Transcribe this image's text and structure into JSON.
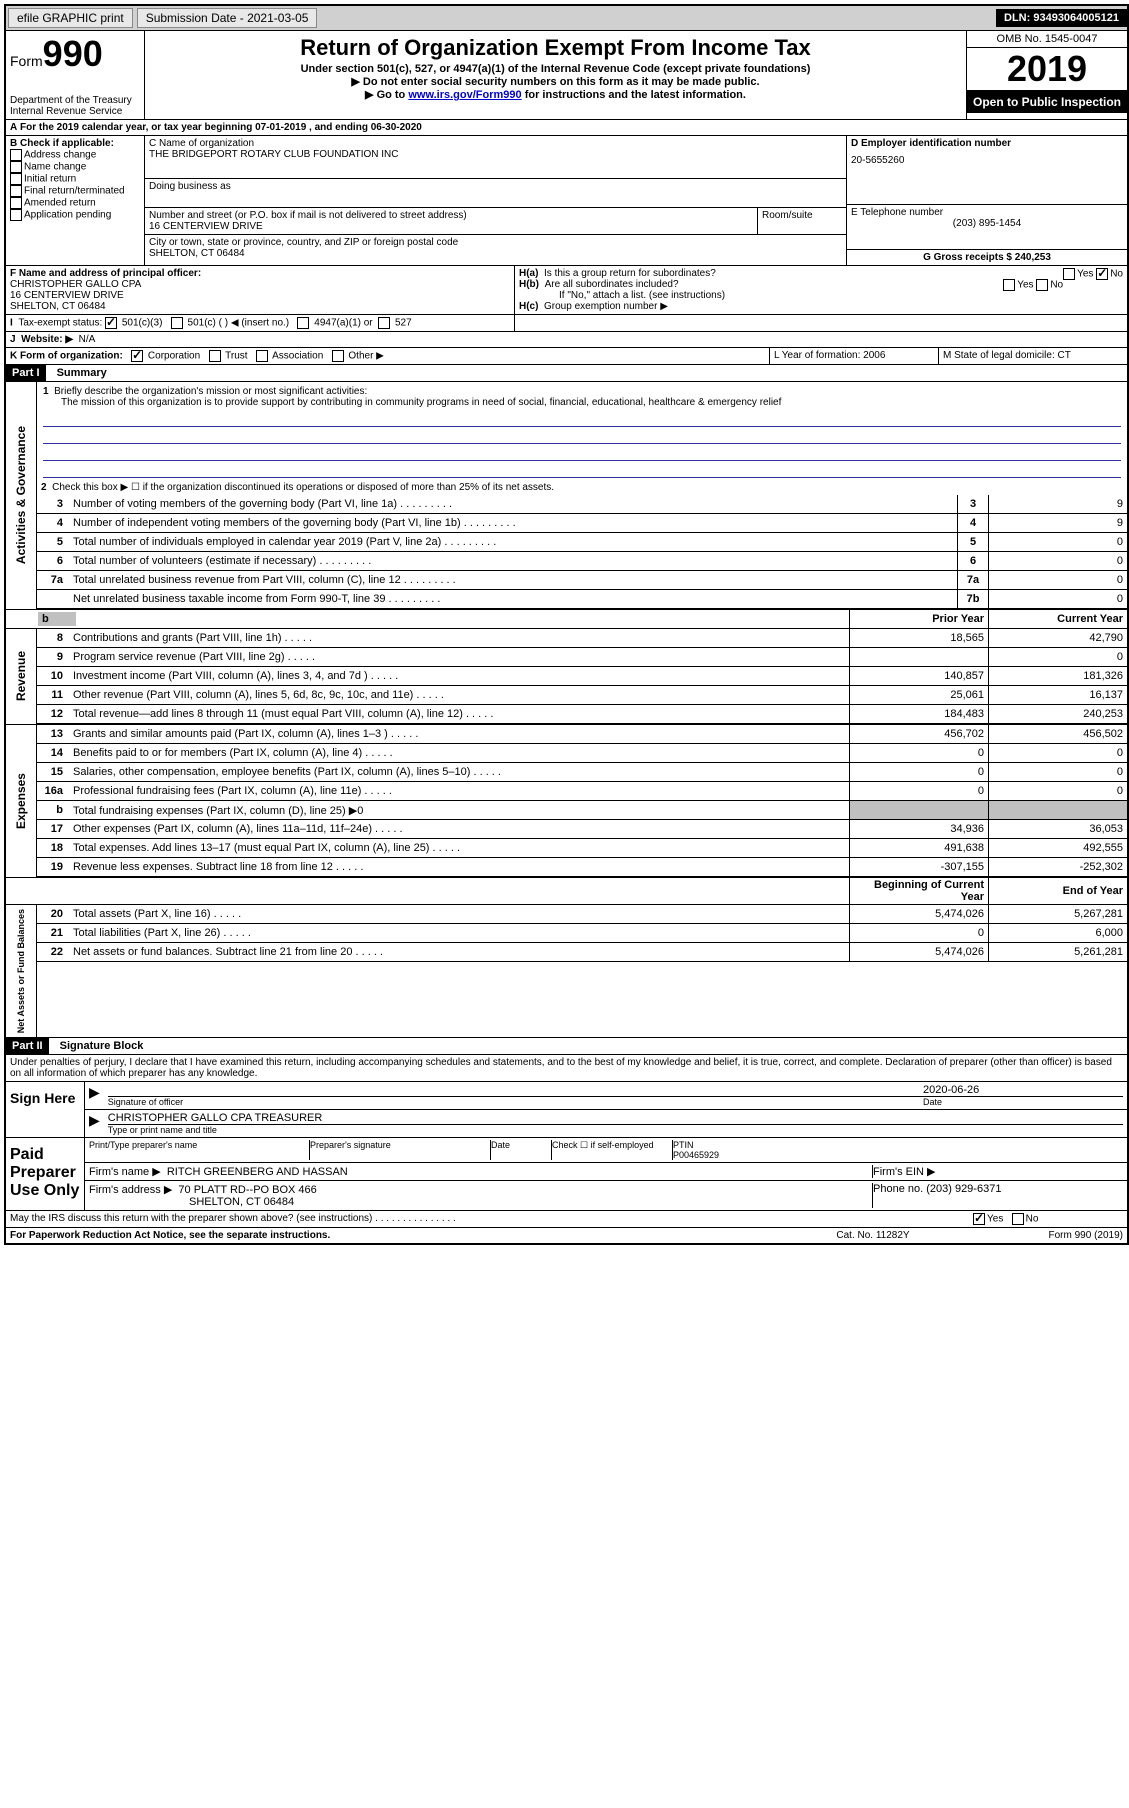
{
  "topbar": {
    "efile": "efile GRAPHIC print",
    "submission": "Submission Date - 2021-03-05",
    "dln": "DLN: 93493064005121"
  },
  "header": {
    "form_prefix": "Form",
    "form_num": "990",
    "dept": "Department of the Treasury\nInternal Revenue Service",
    "title": "Return of Organization Exempt From Income Tax",
    "sub1": "Under section 501(c), 527, or 4947(a)(1) of the Internal Revenue Code (except private foundations)",
    "sub2": "▶ Do not enter social security numbers on this form as it may be made public.",
    "sub3_a": "▶ Go to ",
    "sub3_link": "www.irs.gov/Form990",
    "sub3_b": " for instructions and the latest information.",
    "omb": "OMB No. 1545-0047",
    "year": "2019",
    "inspection": "Open to Public Inspection"
  },
  "a_line": "For the 2019 calendar year, or tax year beginning 07-01-2019    , and ending 06-30-2020",
  "b": {
    "title": "B Check if applicable:",
    "opts": [
      "Address change",
      "Name change",
      "Initial return",
      "Final return/terminated",
      "Amended return",
      "Application pending"
    ]
  },
  "c": {
    "label": "C Name of organization",
    "name": "THE BRIDGEPORT ROTARY CLUB FOUNDATION INC",
    "dba": "Doing business as",
    "addr_label": "Number and street (or P.O. box if mail is not delivered to street address)",
    "room": "Room/suite",
    "addr": "16 CENTERVIEW DRIVE",
    "city_label": "City or town, state or province, country, and ZIP or foreign postal code",
    "city": "SHELTON, CT  06484"
  },
  "d": {
    "label": "D Employer identification number",
    "ein": "20-5655260"
  },
  "e": {
    "label": "E Telephone number",
    "phone": "(203) 895-1454"
  },
  "g": {
    "label": "G Gross receipts $ 240,253"
  },
  "f": {
    "label": "F  Name and address of principal officer:",
    "name": "CHRISTOPHER GALLO CPA",
    "addr": "16 CENTERVIEW DRIVE",
    "city": "SHELTON, CT  06484"
  },
  "h": {
    "a": "Is this a group return for subordinates?",
    "b": "Are all subordinates included?",
    "note": "If \"No,\" attach a list. (see instructions)",
    "c": "Group exemption number ▶"
  },
  "i": {
    "label": "Tax-exempt status:",
    "opts": [
      "501(c)(3)",
      "501(c) (  ) ◀ (insert no.)",
      "4947(a)(1) or",
      "527"
    ]
  },
  "j": {
    "label": "Website: ▶",
    "val": "N/A"
  },
  "k": {
    "label": "K Form of organization:",
    "opts": [
      "Corporation",
      "Trust",
      "Association",
      "Other ▶"
    ]
  },
  "l": {
    "label": "L Year of formation: 2006"
  },
  "m": {
    "label": "M State of legal domicile: CT"
  },
  "part1": {
    "title": "Part I",
    "subtitle": "Summary",
    "line1": "Briefly describe the organization's mission or most significant activities:",
    "mission": "The mission of this organization is to provide support by contributing in community programs in need of social, financial, educational, healthcare & emergency relief",
    "line2": "Check this box ▶ ☐  if the organization discontinued its operations or disposed of more than 25% of its net assets.",
    "sections": {
      "activities": "Activities & Governance",
      "revenue": "Revenue",
      "expenses": "Expenses",
      "netassets": "Net Assets or Fund Balances"
    },
    "col_prior": "Prior Year",
    "col_current": "Current Year",
    "col_boy": "Beginning of Current Year",
    "col_eoy": "End of Year",
    "rows": [
      {
        "n": "3",
        "label": "Number of voting members of the governing body (Part VI, line 1a)",
        "box": "3",
        "v2": "9"
      },
      {
        "n": "4",
        "label": "Number of independent voting members of the governing body (Part VI, line 1b)",
        "box": "4",
        "v2": "9"
      },
      {
        "n": "5",
        "label": "Total number of individuals employed in calendar year 2019 (Part V, line 2a)",
        "box": "5",
        "v2": "0"
      },
      {
        "n": "6",
        "label": "Total number of volunteers (estimate if necessary)",
        "box": "6",
        "v2": "0"
      },
      {
        "n": "7a",
        "label": "Total unrelated business revenue from Part VIII, column (C), line 12",
        "box": "7a",
        "v2": "0"
      },
      {
        "n": "",
        "label": "Net unrelated business taxable income from Form 990-T, line 39",
        "box": "7b",
        "v2": "0"
      }
    ],
    "rev": [
      {
        "n": "8",
        "label": "Contributions and grants (Part VIII, line 1h)",
        "v1": "18,565",
        "v2": "42,790"
      },
      {
        "n": "9",
        "label": "Program service revenue (Part VIII, line 2g)",
        "v1": "",
        "v2": "0"
      },
      {
        "n": "10",
        "label": "Investment income (Part VIII, column (A), lines 3, 4, and 7d )",
        "v1": "140,857",
        "v2": "181,326"
      },
      {
        "n": "11",
        "label": "Other revenue (Part VIII, column (A), lines 5, 6d, 8c, 9c, 10c, and 11e)",
        "v1": "25,061",
        "v2": "16,137"
      },
      {
        "n": "12",
        "label": "Total revenue—add lines 8 through 11 (must equal Part VIII, column (A), line 12)",
        "v1": "184,483",
        "v2": "240,253"
      }
    ],
    "exp": [
      {
        "n": "13",
        "label": "Grants and similar amounts paid (Part IX, column (A), lines 1–3 )",
        "v1": "456,702",
        "v2": "456,502"
      },
      {
        "n": "14",
        "label": "Benefits paid to or for members (Part IX, column (A), line 4)",
        "v1": "0",
        "v2": "0"
      },
      {
        "n": "15",
        "label": "Salaries, other compensation, employee benefits (Part IX, column (A), lines 5–10)",
        "v1": "0",
        "v2": "0"
      },
      {
        "n": "16a",
        "label": "Professional fundraising fees (Part IX, column (A), line 11e)",
        "v1": "0",
        "v2": "0"
      },
      {
        "n": "b",
        "label": "Total fundraising expenses (Part IX, column (D), line 25) ▶0",
        "shaded": true
      },
      {
        "n": "17",
        "label": "Other expenses (Part IX, column (A), lines 11a–11d, 11f–24e)",
        "v1": "34,936",
        "v2": "36,053"
      },
      {
        "n": "18",
        "label": "Total expenses. Add lines 13–17 (must equal Part IX, column (A), line 25)",
        "v1": "491,638",
        "v2": "492,555"
      },
      {
        "n": "19",
        "label": "Revenue less expenses. Subtract line 18 from line 12",
        "v1": "-307,155",
        "v2": "-252,302"
      }
    ],
    "net": [
      {
        "n": "20",
        "label": "Total assets (Part X, line 16)",
        "v1": "5,474,026",
        "v2": "5,267,281"
      },
      {
        "n": "21",
        "label": "Total liabilities (Part X, line 26)",
        "v1": "0",
        "v2": "6,000"
      },
      {
        "n": "22",
        "label": "Net assets or fund balances. Subtract line 21 from line 20",
        "v1": "5,474,026",
        "v2": "5,261,281"
      }
    ]
  },
  "part2": {
    "title": "Part II",
    "subtitle": "Signature Block",
    "penalties": "Under penalties of perjury, I declare that I have examined this return, including accompanying schedules and statements, and to the best of my knowledge and belief, it is true, correct, and complete. Declaration of preparer (other than officer) is based on all information of which preparer has any knowledge.",
    "sign_here": "Sign Here",
    "sig_officer": "Signature of officer",
    "sig_date": "Date",
    "sig_date_val": "2020-06-26",
    "sig_name": "CHRISTOPHER GALLO CPA  TREASURER",
    "sig_name_label": "Type or print name and title",
    "paid": "Paid Preparer Use Only",
    "prep_name_label": "Print/Type preparer's name",
    "prep_sig_label": "Preparer's signature",
    "date_label": "Date",
    "check_self": "Check ☐  if self-employed",
    "ptin_label": "PTIN",
    "ptin": "P00465929",
    "firm_name_label": "Firm's name    ▶",
    "firm_name": "RITCH GREENBERG AND HASSAN",
    "firm_ein_label": "Firm's EIN ▶",
    "firm_addr_label": "Firm's address ▶",
    "firm_addr": "70 PLATT RD--PO BOX 466",
    "firm_city": "SHELTON, CT  06484",
    "phone_label": "Phone no. (203) 929-6371",
    "discuss": "May the IRS discuss this return with the preparer shown above? (see instructions)",
    "yes": "Yes",
    "no": "No"
  },
  "footer": {
    "left": "For Paperwork Reduction Act Notice, see the separate instructions.",
    "mid": "Cat. No. 11282Y",
    "right": "Form 990 (2019)"
  }
}
